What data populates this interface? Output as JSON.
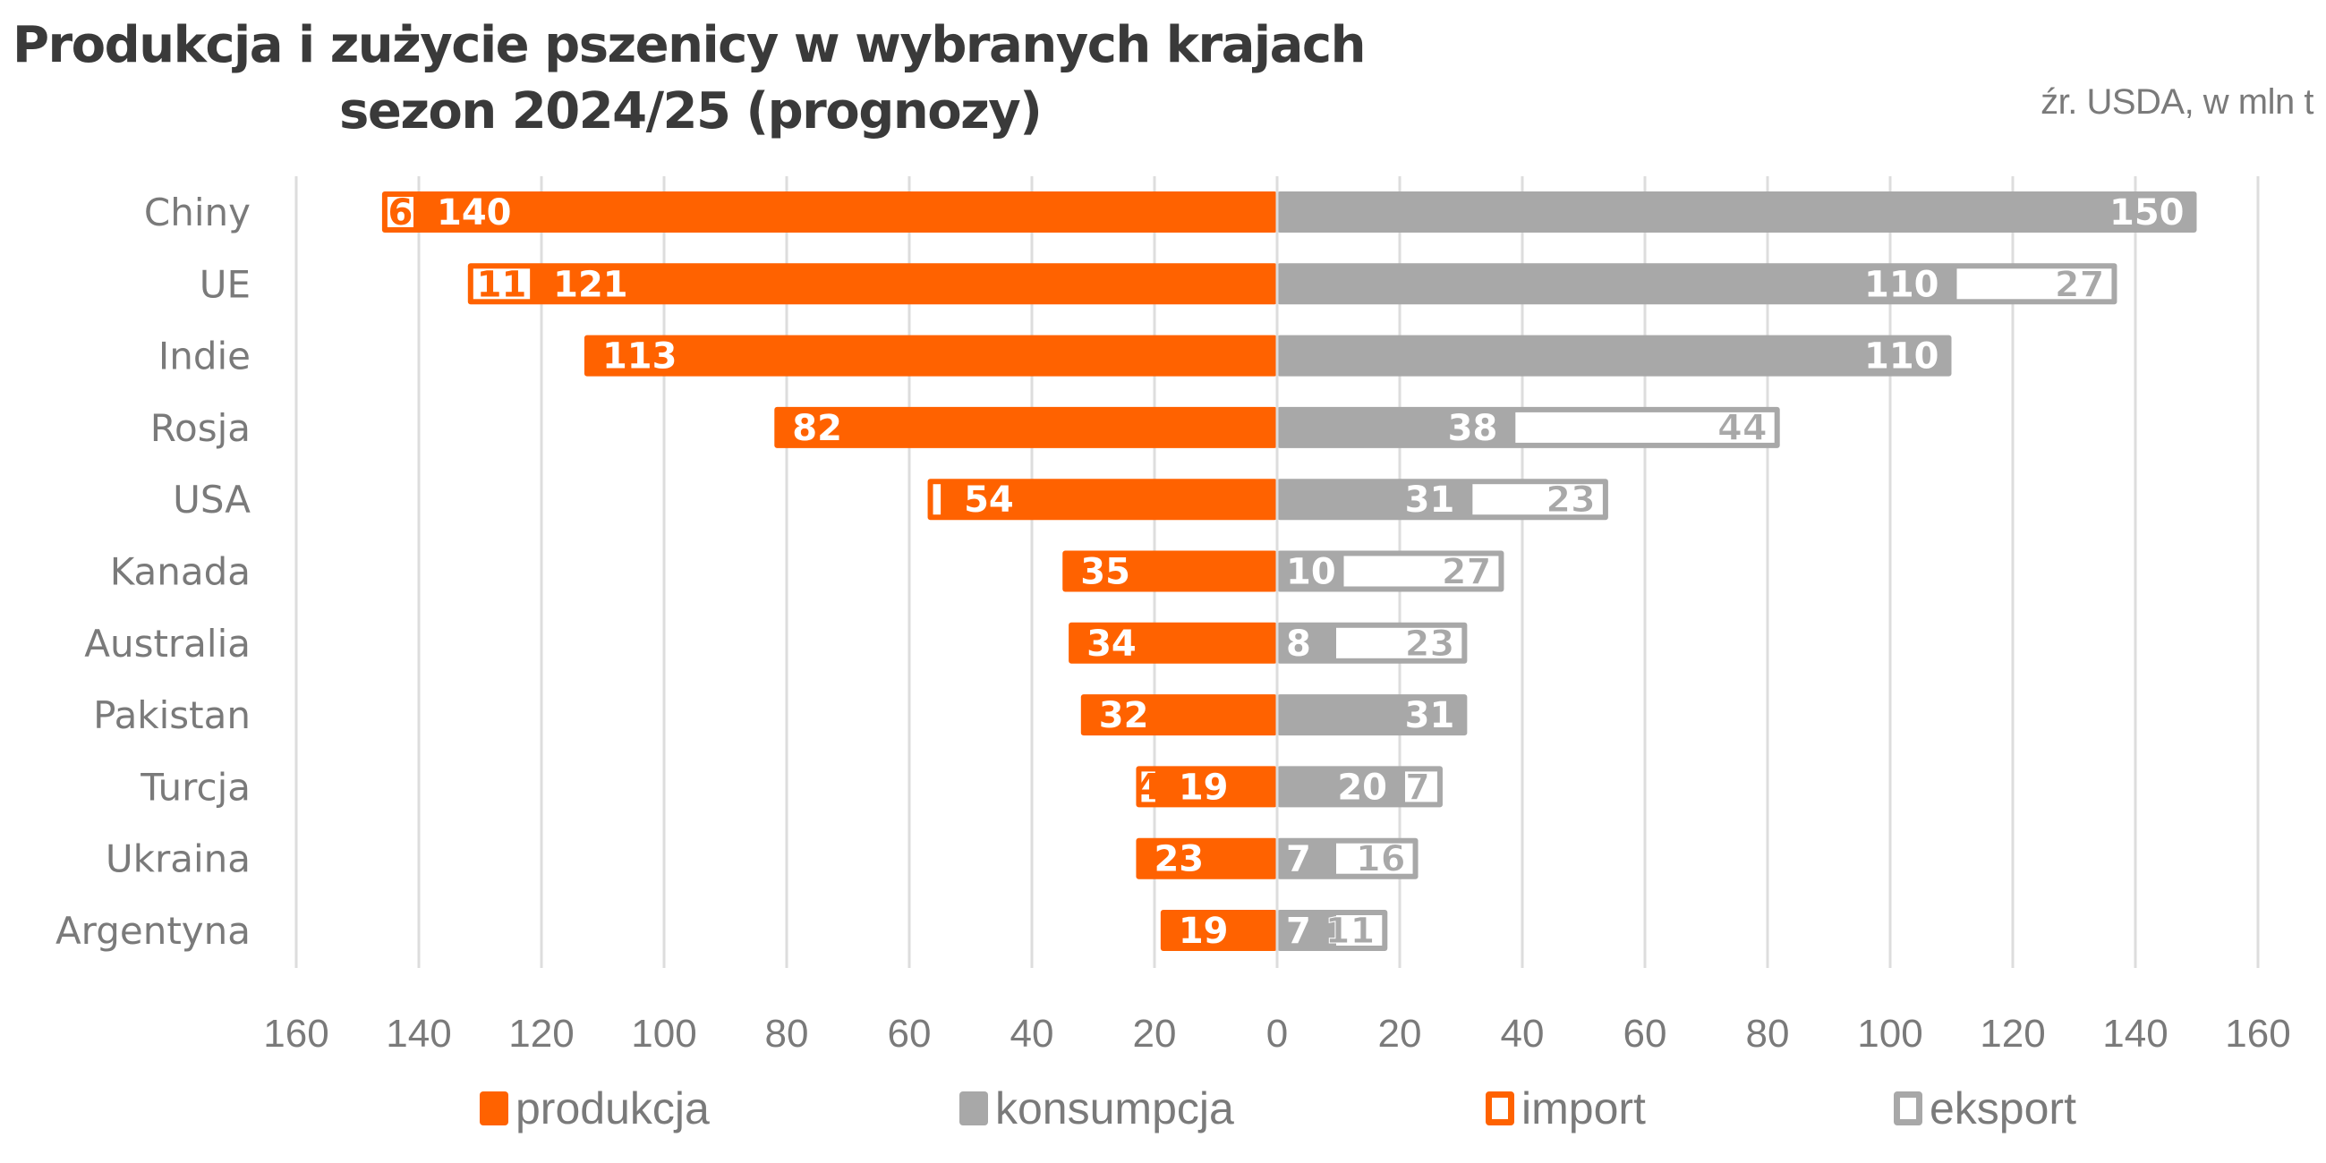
{
  "colors": {
    "produkcja": "#FF6200",
    "konsumpcja": "#A8A8A8",
    "import_border": "#FF6200",
    "eksport_border": "#A8A8A8",
    "grid": "#DDDDDD",
    "text": "#7A7A7A",
    "title": "#3A3A3A"
  },
  "header": {
    "title_line1": "Produkcja i zużycie pszenicy w wybranych krajach",
    "title_line2": "sezon 2024/25 (prognozy)",
    "source": "źr. USDA, w mln t"
  },
  "legend": [
    {
      "key": "produkcja",
      "label": "produkcja",
      "style": "filled-orange"
    },
    {
      "key": "konsumpcja",
      "label": "konsumpcja",
      "style": "filled-gray"
    },
    {
      "key": "import",
      "label": "import",
      "style": "outlined-orange"
    },
    {
      "key": "eksport",
      "label": "eksport",
      "style": "outlined-gray"
    }
  ],
  "chart_data": {
    "type": "bar",
    "orientation": "horizontal-butterfly",
    "title": "Produkcja i zużycie pszenicy w wybranych krajach sezon 2024/25 (prognozy)",
    "subtitle": "źr. USDA, w mln t",
    "xlabel": "",
    "ylabel": "",
    "grid": true,
    "legend_position": "bottom",
    "left_side": "produkcja + import (stacked, extending left)",
    "right_side": "konsumpcja + eksport (stacked, extending right)",
    "xlim_left": [
      0,
      160
    ],
    "xlim_right": [
      0,
      160
    ],
    "x_ticks_left": [
      "160",
      "140",
      "120",
      "100",
      "80",
      "60",
      "40",
      "20",
      "0"
    ],
    "x_ticks_right": [
      "20",
      "40",
      "60",
      "80",
      "100",
      "120",
      "140",
      "160"
    ],
    "tick_step": 20,
    "categories": [
      "Chiny",
      "UE",
      "Indie",
      "Rosja",
      "USA",
      "Kanada",
      "Australia",
      "Pakistan",
      "Turcja",
      "Ukraina",
      "Argentyna"
    ],
    "series": [
      {
        "name": "produkcja",
        "side": "left",
        "values": [
          140,
          121,
          113,
          82,
          54,
          35,
          34,
          32,
          19,
          23,
          19
        ],
        "labels": [
          "140",
          "121",
          "113",
          "82",
          "54",
          "35",
          "34",
          "32",
          "19",
          "23",
          "19"
        ]
      },
      {
        "name": "import",
        "side": "left",
        "values": [
          6,
          11,
          0,
          0,
          3,
          0,
          0,
          0,
          4,
          0,
          0
        ],
        "labels": [
          "6",
          "11",
          "",
          "",
          "",
          "",
          "",
          "",
          "4",
          "",
          ""
        ]
      },
      {
        "name": "konsumpcja",
        "side": "right",
        "values": [
          150,
          110,
          110,
          38,
          31,
          10,
          8,
          31,
          20,
          7,
          7
        ],
        "labels": [
          "150",
          "110",
          "110",
          "38",
          "31",
          "10",
          "8",
          "31",
          "20",
          "7",
          "7"
        ]
      },
      {
        "name": "eksport",
        "side": "right",
        "values": [
          0,
          27,
          0,
          44,
          23,
          27,
          23,
          0,
          7,
          16,
          11
        ],
        "labels": [
          "",
          "27",
          "",
          "44",
          "23",
          "27",
          "23",
          "",
          "7",
          "16",
          "11"
        ]
      }
    ]
  }
}
